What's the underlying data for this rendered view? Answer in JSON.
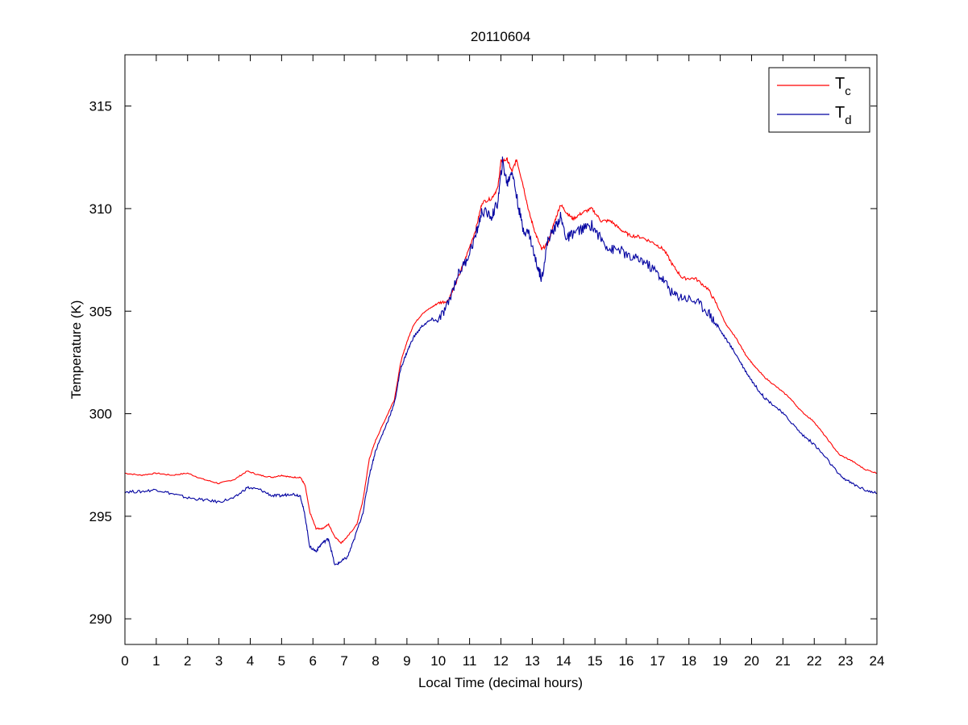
{
  "chart_data": {
    "type": "line",
    "title": "20110604",
    "xlabel": "Local Time (decimal hours)",
    "ylabel": "Temperature (K)",
    "xlim": [
      0,
      24
    ],
    "ylim": [
      288.75,
      317.5
    ],
    "xticks": [
      0,
      1,
      2,
      3,
      4,
      5,
      6,
      7,
      8,
      9,
      10,
      11,
      12,
      13,
      14,
      15,
      16,
      17,
      18,
      19,
      20,
      21,
      22,
      23,
      24
    ],
    "yticks": [
      290,
      295,
      300,
      305,
      310,
      315
    ],
    "grid": false,
    "legend": {
      "position": "top-right",
      "entries": [
        {
          "base": "T",
          "sub": "c",
          "color": "#ff0000"
        },
        {
          "base": "T",
          "sub": "d",
          "color": "#0000a0"
        }
      ]
    },
    "series": [
      {
        "color": "#ff0000",
        "points": [
          [
            0,
            297.1
          ],
          [
            0.5,
            297.0
          ],
          [
            1,
            297.1
          ],
          [
            1.5,
            297.0
          ],
          [
            2,
            297.1
          ],
          [
            2.5,
            296.8
          ],
          [
            3,
            296.6
          ],
          [
            3.5,
            296.8
          ],
          [
            3.9,
            297.2
          ],
          [
            4.3,
            297.0
          ],
          [
            4.7,
            296.9
          ],
          [
            5,
            297.0
          ],
          [
            5.3,
            296.9
          ],
          [
            5.6,
            296.9
          ],
          [
            5.75,
            296.5
          ],
          [
            5.9,
            295.2
          ],
          [
            6.1,
            294.4
          ],
          [
            6.3,
            294.4
          ],
          [
            6.5,
            294.6
          ],
          [
            6.7,
            294.0
          ],
          [
            6.9,
            293.7
          ],
          [
            7.1,
            294.0
          ],
          [
            7.4,
            294.6
          ],
          [
            7.6,
            295.8
          ],
          [
            7.8,
            297.8
          ],
          [
            8.0,
            298.7
          ],
          [
            8.3,
            299.7
          ],
          [
            8.6,
            300.7
          ],
          [
            8.8,
            302.5
          ],
          [
            9.0,
            303.5
          ],
          [
            9.2,
            304.3
          ],
          [
            9.5,
            304.9
          ],
          [
            9.8,
            305.2
          ],
          [
            10.0,
            305.4
          ],
          [
            10.3,
            305.5
          ],
          [
            10.6,
            306.5
          ],
          [
            10.9,
            307.7
          ],
          [
            11.2,
            309.0
          ],
          [
            11.4,
            310.3
          ],
          [
            11.7,
            310.5
          ],
          [
            11.9,
            311.0
          ],
          [
            12.0,
            312.3
          ],
          [
            12.2,
            312.4
          ],
          [
            12.35,
            311.8
          ],
          [
            12.5,
            312.4
          ],
          [
            12.7,
            311.2
          ],
          [
            12.9,
            309.8
          ],
          [
            13.1,
            308.8
          ],
          [
            13.3,
            308.0
          ],
          [
            13.5,
            308.3
          ],
          [
            13.7,
            309.3
          ],
          [
            13.9,
            310.2
          ],
          [
            14.1,
            309.8
          ],
          [
            14.3,
            309.5
          ],
          [
            14.6,
            309.8
          ],
          [
            14.9,
            310.0
          ],
          [
            15.2,
            309.4
          ],
          [
            15.5,
            309.4
          ],
          [
            15.8,
            309.0
          ],
          [
            16.1,
            308.7
          ],
          [
            16.5,
            308.6
          ],
          [
            16.9,
            308.3
          ],
          [
            17.2,
            308.0
          ],
          [
            17.5,
            307.2
          ],
          [
            17.8,
            306.6
          ],
          [
            18.2,
            306.6
          ],
          [
            18.6,
            306.1
          ],
          [
            18.9,
            305.3
          ],
          [
            19.2,
            304.3
          ],
          [
            19.5,
            303.7
          ],
          [
            19.8,
            302.9
          ],
          [
            20.1,
            302.3
          ],
          [
            20.4,
            301.8
          ],
          [
            20.8,
            301.3
          ],
          [
            21.2,
            300.8
          ],
          [
            21.6,
            300.1
          ],
          [
            22.0,
            299.6
          ],
          [
            22.4,
            298.8
          ],
          [
            22.8,
            298.0
          ],
          [
            23.2,
            297.7
          ],
          [
            23.6,
            297.3
          ],
          [
            24.0,
            297.1
          ]
        ]
      },
      {
        "color": "#0000a0",
        "points": [
          [
            0,
            296.2
          ],
          [
            0.5,
            296.2
          ],
          [
            1,
            296.3
          ],
          [
            1.5,
            296.1
          ],
          [
            2,
            295.9
          ],
          [
            2.5,
            295.8
          ],
          [
            3,
            295.7
          ],
          [
            3.5,
            295.9
          ],
          [
            3.9,
            296.4
          ],
          [
            4.3,
            296.3
          ],
          [
            4.7,
            296.0
          ],
          [
            5,
            296.0
          ],
          [
            5.3,
            296.1
          ],
          [
            5.6,
            296.0
          ],
          [
            5.75,
            295.0
          ],
          [
            5.9,
            293.5
          ],
          [
            6.1,
            293.3
          ],
          [
            6.3,
            293.7
          ],
          [
            6.5,
            293.9
          ],
          [
            6.7,
            292.6
          ],
          [
            6.9,
            292.8
          ],
          [
            7.1,
            293.0
          ],
          [
            7.3,
            293.8
          ],
          [
            7.6,
            295.2
          ],
          [
            7.8,
            297.0
          ],
          [
            8.0,
            298.2
          ],
          [
            8.3,
            299.3
          ],
          [
            8.6,
            300.5
          ],
          [
            8.8,
            302.2
          ],
          [
            9.0,
            303.0
          ],
          [
            9.2,
            303.7
          ],
          [
            9.5,
            304.3
          ],
          [
            9.8,
            304.6
          ],
          [
            10.0,
            304.5
          ],
          [
            10.3,
            305.3
          ],
          [
            10.6,
            306.7
          ],
          [
            10.9,
            307.5
          ],
          [
            11.2,
            308.7
          ],
          [
            11.4,
            309.9
          ],
          [
            11.7,
            309.6
          ],
          [
            11.9,
            310.3
          ],
          [
            12.05,
            312.3
          ],
          [
            12.2,
            311.2
          ],
          [
            12.35,
            311.9
          ],
          [
            12.5,
            310.6
          ],
          [
            12.7,
            309.0
          ],
          [
            12.9,
            308.8
          ],
          [
            13.1,
            307.5
          ],
          [
            13.3,
            306.6
          ],
          [
            13.5,
            308.5
          ],
          [
            13.7,
            309.0
          ],
          [
            13.9,
            309.6
          ],
          [
            14.1,
            308.5
          ],
          [
            14.3,
            308.8
          ],
          [
            14.6,
            309.0
          ],
          [
            14.9,
            309.2
          ],
          [
            15.2,
            308.5
          ],
          [
            15.5,
            308.0
          ],
          [
            15.8,
            308.0
          ],
          [
            16.1,
            307.6
          ],
          [
            16.5,
            307.5
          ],
          [
            16.9,
            307.0
          ],
          [
            17.2,
            306.5
          ],
          [
            17.5,
            305.8
          ],
          [
            17.8,
            305.7
          ],
          [
            18.2,
            305.5
          ],
          [
            18.6,
            305.0
          ],
          [
            18.9,
            304.3
          ],
          [
            19.2,
            303.6
          ],
          [
            19.5,
            302.9
          ],
          [
            19.8,
            302.1
          ],
          [
            20.1,
            301.4
          ],
          [
            20.4,
            300.8
          ],
          [
            20.8,
            300.3
          ],
          [
            21.2,
            299.7
          ],
          [
            21.6,
            299.0
          ],
          [
            22.0,
            298.5
          ],
          [
            22.4,
            297.8
          ],
          [
            22.8,
            297.0
          ],
          [
            23.2,
            296.6
          ],
          [
            23.6,
            296.3
          ],
          [
            24.0,
            296.1
          ]
        ]
      }
    ]
  }
}
